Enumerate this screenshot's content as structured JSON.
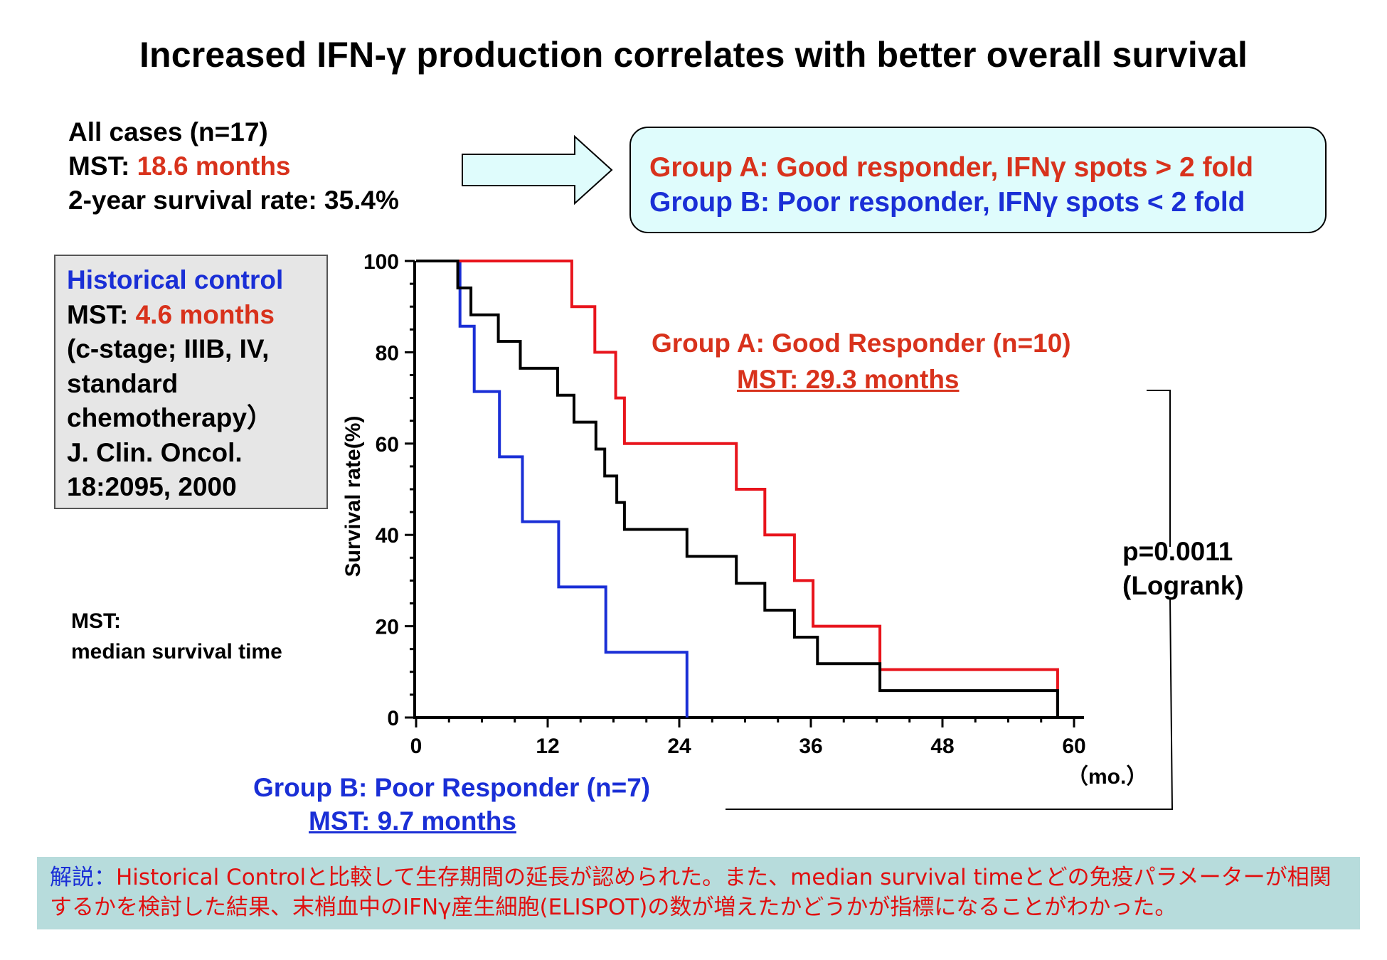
{
  "title": "Increased IFN-γ production correlates with better overall survival",
  "summary": {
    "line1": "All cases (n=17)",
    "mst_label": "MST: ",
    "mst_value": "18.6 months",
    "line3": "2-year survival rate: 35.4%"
  },
  "groups_box": {
    "group_a": "Group A: Good responder, IFNγ spots > 2 fold",
    "group_b": "Group B: Poor responder, IFNγ spots < 2 fold"
  },
  "historical_control": {
    "heading": "Historical control",
    "mst_label": "MST: ",
    "mst_value": "4.6 months",
    "lines": [
      "(c-stage; IIIB, IV,",
      "standard",
      "chemotherapy）",
      "J. Clin. Oncol.",
      "18:2095, 2000"
    ]
  },
  "mst_definition": {
    "line1": "MST:",
    "line2": "median survival time"
  },
  "annotations": {
    "group_a_label": "Group A: Good Responder (n=10)",
    "group_a_mst": "MST: 29.3 months",
    "group_b_label": "Group B: Poor Responder (n=7)",
    "group_b_mst": "MST: 9.7 months",
    "p_value": "p=0.0011",
    "test": "(Logrank)"
  },
  "footer": {
    "lead": "解説：",
    "text1": "Historical Controlと比較して生存期間の延長が認められた。また、median survival timeとどの免疫パラメーターが相関",
    "text2": "するかを検討した結果、末梢血中のIFNγ産生細胞(ELISPOT)の数が増えたかどうかが指標になることがわかった。"
  },
  "colors": {
    "group_a": "#e8141c",
    "group_b": "#1a2fd6",
    "all_cases": "#000000",
    "highlight_red": "#d8321c",
    "box_fill": "#dffcfc",
    "footer_fill": "#b7dcdc"
  },
  "chart_data": {
    "type": "line",
    "step": true,
    "xlabel": "（mo.）",
    "ylabel": "Survival rate(%)",
    "xlim": [
      0,
      60
    ],
    "ylim": [
      0,
      100
    ],
    "xticks": [
      0,
      12,
      24,
      36,
      48,
      60
    ],
    "yticks": [
      0,
      20,
      40,
      60,
      80,
      100
    ],
    "grid": false,
    "series": [
      {
        "name": "Group A: Good Responder (n=10)",
        "color": "#e8141c",
        "points": [
          [
            0,
            100
          ],
          [
            14.2,
            100
          ],
          [
            14.2,
            90
          ],
          [
            16.3,
            90
          ],
          [
            16.3,
            80
          ],
          [
            18.2,
            80
          ],
          [
            18.2,
            70
          ],
          [
            19,
            70
          ],
          [
            19,
            60
          ],
          [
            29.2,
            60
          ],
          [
            29.2,
            50
          ],
          [
            31.8,
            50
          ],
          [
            31.8,
            40
          ],
          [
            34.5,
            40
          ],
          [
            34.5,
            30
          ],
          [
            36.2,
            30
          ],
          [
            36.2,
            20
          ],
          [
            42.3,
            20
          ],
          [
            42.3,
            10.5
          ],
          [
            58.5,
            10.5
          ],
          [
            58.5,
            1
          ]
        ]
      },
      {
        "name": "Group B: Poor Responder (n=7)",
        "color": "#1a2fd6",
        "points": [
          [
            0,
            100
          ],
          [
            4,
            100
          ],
          [
            4,
            85.7
          ],
          [
            5.3,
            85.7
          ],
          [
            5.3,
            71.4
          ],
          [
            7.6,
            71.4
          ],
          [
            7.6,
            57.1
          ],
          [
            9.7,
            57.1
          ],
          [
            9.7,
            42.9
          ],
          [
            13,
            42.9
          ],
          [
            13,
            28.6
          ],
          [
            17.3,
            28.6
          ],
          [
            17.3,
            14.3
          ],
          [
            24.7,
            14.3
          ],
          [
            24.7,
            0
          ]
        ]
      },
      {
        "name": "All cases (n=17)",
        "color": "#000000",
        "points": [
          [
            0,
            100
          ],
          [
            3.8,
            100
          ],
          [
            3.8,
            94.1
          ],
          [
            5,
            94.1
          ],
          [
            5,
            88.2
          ],
          [
            7.5,
            88.2
          ],
          [
            7.5,
            82.4
          ],
          [
            9.5,
            82.4
          ],
          [
            9.5,
            76.5
          ],
          [
            12.9,
            76.5
          ],
          [
            12.9,
            70.6
          ],
          [
            14.4,
            70.6
          ],
          [
            14.4,
            64.7
          ],
          [
            16.4,
            64.7
          ],
          [
            16.4,
            58.8
          ],
          [
            17.2,
            58.8
          ],
          [
            17.2,
            52.9
          ],
          [
            18.3,
            52.9
          ],
          [
            18.3,
            47.1
          ],
          [
            19,
            47.1
          ],
          [
            19,
            41.2
          ],
          [
            24.7,
            41.2
          ],
          [
            24.7,
            35.3
          ],
          [
            29.2,
            35.3
          ],
          [
            29.2,
            29.4
          ],
          [
            31.8,
            29.4
          ],
          [
            31.8,
            23.5
          ],
          [
            34.5,
            23.5
          ],
          [
            34.5,
            17.6
          ],
          [
            36.6,
            17.6
          ],
          [
            36.6,
            11.8
          ],
          [
            42.3,
            11.8
          ],
          [
            42.3,
            5.9
          ],
          [
            58.5,
            5.9
          ],
          [
            58.5,
            0
          ]
        ]
      }
    ]
  }
}
